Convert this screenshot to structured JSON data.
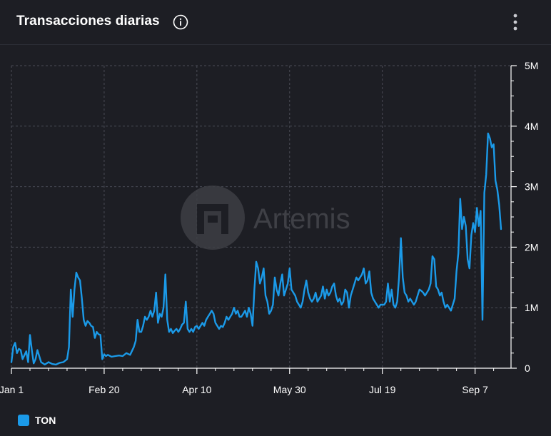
{
  "header": {
    "title": "Transacciones diarias",
    "info_icon": "info-icon",
    "menu_icon": "more-vertical-icon"
  },
  "watermark": {
    "text": "Artemis"
  },
  "colors": {
    "series": "#1b9ae8",
    "background": "#1d1e24",
    "grid": "#4a4c56",
    "text": "#ffffff"
  },
  "chart_data": {
    "type": "line",
    "title": "Transacciones diarias",
    "x_tick_labels": [
      "Jan 1",
      "Feb 20",
      "Apr 10",
      "May 30",
      "Jul 19",
      "Sep 7"
    ],
    "y_tick_labels": [
      "0",
      "1M",
      "2M",
      "3M",
      "4M",
      "5M"
    ],
    "y_axis_side": "right",
    "ylim": [
      0,
      5000000
    ],
    "xlim_days": [
      0,
      264
    ],
    "grid": true,
    "legend_position": "bottom-left",
    "series": [
      {
        "name": "TON",
        "color": "#1b9ae8",
        "points": [
          [
            0,
            100000
          ],
          [
            1,
            350000
          ],
          [
            2,
            420000
          ],
          [
            3,
            250000
          ],
          [
            4,
            320000
          ],
          [
            5,
            300000
          ],
          [
            6,
            150000
          ],
          [
            8,
            280000
          ],
          [
            9,
            100000
          ],
          [
            10,
            550000
          ],
          [
            11,
            300000
          ],
          [
            12,
            80000
          ],
          [
            13,
            150000
          ],
          [
            14,
            300000
          ],
          [
            16,
            100000
          ],
          [
            18,
            60000
          ],
          [
            20,
            100000
          ],
          [
            22,
            70000
          ],
          [
            24,
            60000
          ],
          [
            26,
            90000
          ],
          [
            28,
            100000
          ],
          [
            30,
            150000
          ],
          [
            31,
            350000
          ],
          [
            32,
            1300000
          ],
          [
            33,
            850000
          ],
          [
            34,
            1300000
          ],
          [
            35,
            1580000
          ],
          [
            36,
            1500000
          ],
          [
            37,
            1450000
          ],
          [
            38,
            1150000
          ],
          [
            39,
            800000
          ],
          [
            40,
            700000
          ],
          [
            41,
            780000
          ],
          [
            42,
            750000
          ],
          [
            43,
            700000
          ],
          [
            44,
            680000
          ],
          [
            45,
            500000
          ],
          [
            46,
            600000
          ],
          [
            47,
            560000
          ],
          [
            48,
            550000
          ],
          [
            49,
            150000
          ],
          [
            50,
            230000
          ],
          [
            51,
            200000
          ],
          [
            52,
            220000
          ],
          [
            54,
            190000
          ],
          [
            56,
            200000
          ],
          [
            58,
            210000
          ],
          [
            60,
            200000
          ],
          [
            62,
            250000
          ],
          [
            64,
            220000
          ],
          [
            66,
            350000
          ],
          [
            67,
            450000
          ],
          [
            68,
            800000
          ],
          [
            69,
            600000
          ],
          [
            70,
            600000
          ],
          [
            71,
            700000
          ],
          [
            72,
            850000
          ],
          [
            73,
            800000
          ],
          [
            74,
            850000
          ],
          [
            75,
            950000
          ],
          [
            76,
            850000
          ],
          [
            77,
            950000
          ],
          [
            78,
            1250000
          ],
          [
            79,
            750000
          ],
          [
            80,
            900000
          ],
          [
            81,
            850000
          ],
          [
            82,
            1000000
          ],
          [
            83,
            1550000
          ],
          [
            84,
            800000
          ],
          [
            85,
            600000
          ],
          [
            86,
            650000
          ],
          [
            87,
            580000
          ],
          [
            88,
            620000
          ],
          [
            89,
            650000
          ],
          [
            90,
            600000
          ],
          [
            91,
            650000
          ],
          [
            92,
            720000
          ],
          [
            93,
            750000
          ],
          [
            94,
            1100000
          ],
          [
            95,
            650000
          ],
          [
            96,
            600000
          ],
          [
            97,
            650000
          ],
          [
            98,
            600000
          ],
          [
            99,
            680000
          ],
          [
            100,
            700000
          ],
          [
            101,
            650000
          ],
          [
            102,
            700000
          ],
          [
            103,
            750000
          ],
          [
            104,
            700000
          ],
          [
            105,
            800000
          ],
          [
            106,
            850000
          ],
          [
            107,
            900000
          ],
          [
            108,
            950000
          ],
          [
            109,
            900000
          ],
          [
            110,
            750000
          ],
          [
            111,
            700000
          ],
          [
            112,
            650000
          ],
          [
            113,
            700000
          ],
          [
            114,
            680000
          ],
          [
            115,
            750000
          ],
          [
            116,
            850000
          ],
          [
            117,
            800000
          ],
          [
            118,
            850000
          ],
          [
            119,
            900000
          ],
          [
            120,
            1000000
          ],
          [
            121,
            900000
          ],
          [
            122,
            950000
          ],
          [
            123,
            850000
          ],
          [
            124,
            850000
          ],
          [
            125,
            900000
          ],
          [
            126,
            950000
          ],
          [
            127,
            850000
          ],
          [
            128,
            1000000
          ],
          [
            129,
            900000
          ],
          [
            130,
            700000
          ],
          [
            131,
            1300000
          ],
          [
            132,
            1760000
          ],
          [
            133,
            1650000
          ],
          [
            134,
            1400000
          ],
          [
            135,
            1500000
          ],
          [
            136,
            1650000
          ],
          [
            137,
            1200000
          ],
          [
            138,
            1100000
          ],
          [
            139,
            900000
          ],
          [
            140,
            950000
          ],
          [
            141,
            1050000
          ],
          [
            142,
            1500000
          ],
          [
            143,
            1300000
          ],
          [
            144,
            1200000
          ],
          [
            145,
            1400000
          ],
          [
            146,
            1550000
          ],
          [
            147,
            1200000
          ],
          [
            148,
            1300000
          ],
          [
            149,
            1400000
          ],
          [
            150,
            1650000
          ],
          [
            151,
            1300000
          ],
          [
            152,
            1250000
          ],
          [
            153,
            1200000
          ],
          [
            154,
            1100000
          ],
          [
            155,
            1050000
          ],
          [
            156,
            1000000
          ],
          [
            157,
            1100000
          ],
          [
            158,
            1300000
          ],
          [
            159,
            1450000
          ],
          [
            160,
            1250000
          ],
          [
            161,
            1150000
          ],
          [
            162,
            1100000
          ],
          [
            163,
            1150000
          ],
          [
            164,
            1250000
          ],
          [
            165,
            1100000
          ],
          [
            166,
            1150000
          ],
          [
            167,
            1200000
          ],
          [
            168,
            1350000
          ],
          [
            169,
            1150000
          ],
          [
            170,
            1300000
          ],
          [
            171,
            1200000
          ],
          [
            172,
            1250000
          ],
          [
            173,
            1350000
          ],
          [
            174,
            1400000
          ],
          [
            175,
            1200000
          ],
          [
            176,
            1100000
          ],
          [
            177,
            1150000
          ],
          [
            178,
            1050000
          ],
          [
            179,
            1100000
          ],
          [
            180,
            1300000
          ],
          [
            181,
            1250000
          ],
          [
            182,
            1000000
          ],
          [
            183,
            1200000
          ],
          [
            184,
            1300000
          ],
          [
            185,
            1400000
          ],
          [
            186,
            1500000
          ],
          [
            187,
            1450000
          ],
          [
            188,
            1500000
          ],
          [
            189,
            1550000
          ],
          [
            190,
            1650000
          ],
          [
            191,
            1400000
          ],
          [
            192,
            1450000
          ],
          [
            193,
            1600000
          ],
          [
            194,
            1250000
          ],
          [
            195,
            1150000
          ],
          [
            196,
            1100000
          ],
          [
            197,
            1050000
          ],
          [
            198,
            1000000
          ],
          [
            199,
            1050000
          ],
          [
            200,
            1050000
          ],
          [
            201,
            1050000
          ],
          [
            202,
            1100000
          ],
          [
            203,
            1400000
          ],
          [
            204,
            1100000
          ],
          [
            205,
            1300000
          ],
          [
            206,
            1050000
          ],
          [
            207,
            1000000
          ],
          [
            208,
            1100000
          ],
          [
            209,
            1500000
          ],
          [
            210,
            2150000
          ],
          [
            211,
            1500000
          ],
          [
            212,
            1250000
          ],
          [
            213,
            1200000
          ],
          [
            214,
            1100000
          ],
          [
            215,
            1150000
          ],
          [
            216,
            1100000
          ],
          [
            217,
            1050000
          ],
          [
            218,
            1100000
          ],
          [
            219,
            1200000
          ],
          [
            220,
            1300000
          ],
          [
            221,
            1280000
          ],
          [
            222,
            1250000
          ],
          [
            223,
            1200000
          ],
          [
            224,
            1250000
          ],
          [
            225,
            1300000
          ],
          [
            226,
            1400000
          ],
          [
            227,
            1850000
          ],
          [
            228,
            1800000
          ],
          [
            229,
            1350000
          ],
          [
            230,
            1300000
          ],
          [
            231,
            1200000
          ],
          [
            232,
            1250000
          ],
          [
            233,
            1100000
          ],
          [
            234,
            1000000
          ],
          [
            235,
            1050000
          ],
          [
            236,
            1000000
          ],
          [
            237,
            950000
          ],
          [
            238,
            1050000
          ],
          [
            239,
            1150000
          ],
          [
            240,
            1600000
          ],
          [
            241,
            1900000
          ],
          [
            242,
            2800000
          ],
          [
            243,
            2300000
          ],
          [
            244,
            2500000
          ],
          [
            245,
            2350000
          ],
          [
            246,
            1800000
          ],
          [
            247,
            1650000
          ],
          [
            248,
            2200000
          ],
          [
            249,
            2400000
          ],
          [
            250,
            2250000
          ],
          [
            251,
            2650000
          ],
          [
            252,
            2350000
          ],
          [
            253,
            2600000
          ],
          [
            254,
            800000
          ],
          [
            255,
            2900000
          ],
          [
            256,
            3200000
          ],
          [
            257,
            3880000
          ],
          [
            258,
            3800000
          ],
          [
            259,
            3650000
          ],
          [
            260,
            3700000
          ],
          [
            261,
            3100000
          ],
          [
            262,
            2950000
          ],
          [
            263,
            2700000
          ],
          [
            264,
            2300000
          ]
        ]
      }
    ]
  }
}
